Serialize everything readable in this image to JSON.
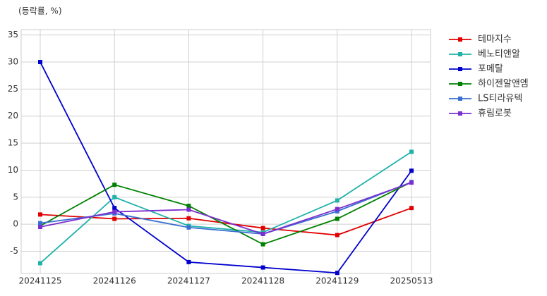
{
  "chart_data": {
    "type": "line",
    "ylabel": "(등락률, %)",
    "categories": [
      "20241125",
      "20241126",
      "20241127",
      "20241128",
      "20241129",
      "20250513"
    ],
    "series": [
      {
        "name": "테마지수",
        "color": "#e00000",
        "values": [
          1.8,
          1.0,
          1.1,
          -0.7,
          -2.0,
          3.0
        ]
      },
      {
        "name": "베노티앤알",
        "color": "#20b2aa",
        "values": [
          -7.2,
          5.0,
          -0.3,
          -1.5,
          4.4,
          13.4
        ]
      },
      {
        "name": "포메탈",
        "color": "#0000cd",
        "values": [
          30.0,
          3.0,
          -7.0,
          -8.0,
          -9.0,
          9.9
        ]
      },
      {
        "name": "하이젠알앤엠",
        "color": "#008000",
        "values": [
          -0.3,
          7.3,
          3.4,
          -3.7,
          1.0,
          7.8
        ]
      },
      {
        "name": "LS티라유텍",
        "color": "#3a6fd1",
        "values": [
          0.2,
          2.0,
          -0.6,
          -1.8,
          2.4,
          7.8
        ]
      },
      {
        "name": "휴림로봇",
        "color": "#7b2fd0",
        "values": [
          -0.5,
          2.3,
          2.7,
          -1.8,
          2.8,
          7.7
        ]
      }
    ],
    "ylim": [
      -9.1,
      36
    ],
    "yticks": [
      -5,
      0,
      5,
      10,
      15,
      20,
      25,
      30,
      35
    ],
    "grid": true,
    "legend": "outside-right"
  }
}
